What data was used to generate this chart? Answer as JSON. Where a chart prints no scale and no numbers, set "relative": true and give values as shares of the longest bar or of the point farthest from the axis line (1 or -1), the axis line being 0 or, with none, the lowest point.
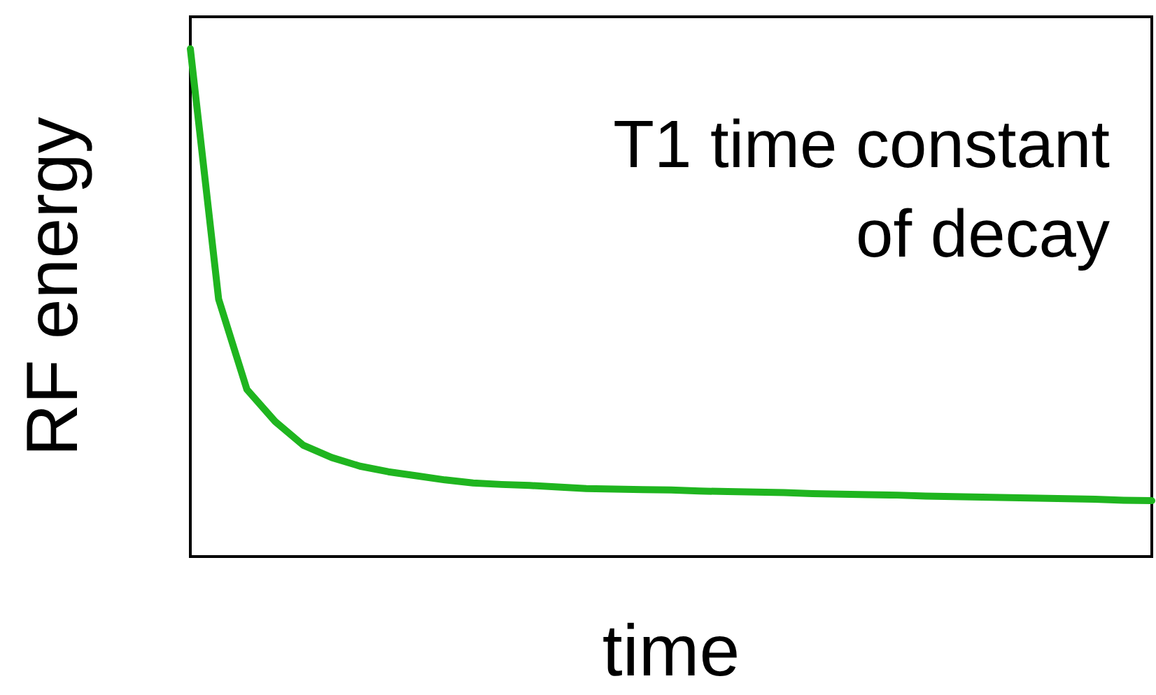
{
  "chart_data": {
    "type": "line",
    "relative": true,
    "xlabel": "time",
    "ylabel": "RF energy",
    "annotations": [
      "T1 time constant\nof decay"
    ],
    "categories": [
      null,
      null,
      null,
      null,
      null,
      null,
      null,
      null,
      null,
      null,
      null,
      null,
      null,
      null,
      null,
      null,
      null,
      null,
      null,
      null,
      null,
      null,
      null,
      null,
      null,
      null,
      null,
      null,
      null,
      null,
      null,
      null,
      null,
      null,
      null
    ],
    "series": [
      {
        "color": "#1fb51f",
        "values": [
          1.0,
          0.507,
          0.329,
          0.266,
          0.219,
          0.195,
          0.178,
          0.167,
          0.159,
          0.151,
          0.145,
          0.142,
          0.14,
          0.137,
          0.134,
          0.133,
          0.132,
          0.131,
          0.129,
          0.128,
          0.127,
          0.126,
          0.124,
          0.123,
          0.122,
          0.121,
          0.119,
          0.118,
          0.117,
          0.116,
          0.115,
          0.114,
          0.113,
          0.111,
          0.11
        ]
      }
    ],
    "grid": false,
    "marker": "none",
    "line_style": "solid"
  }
}
